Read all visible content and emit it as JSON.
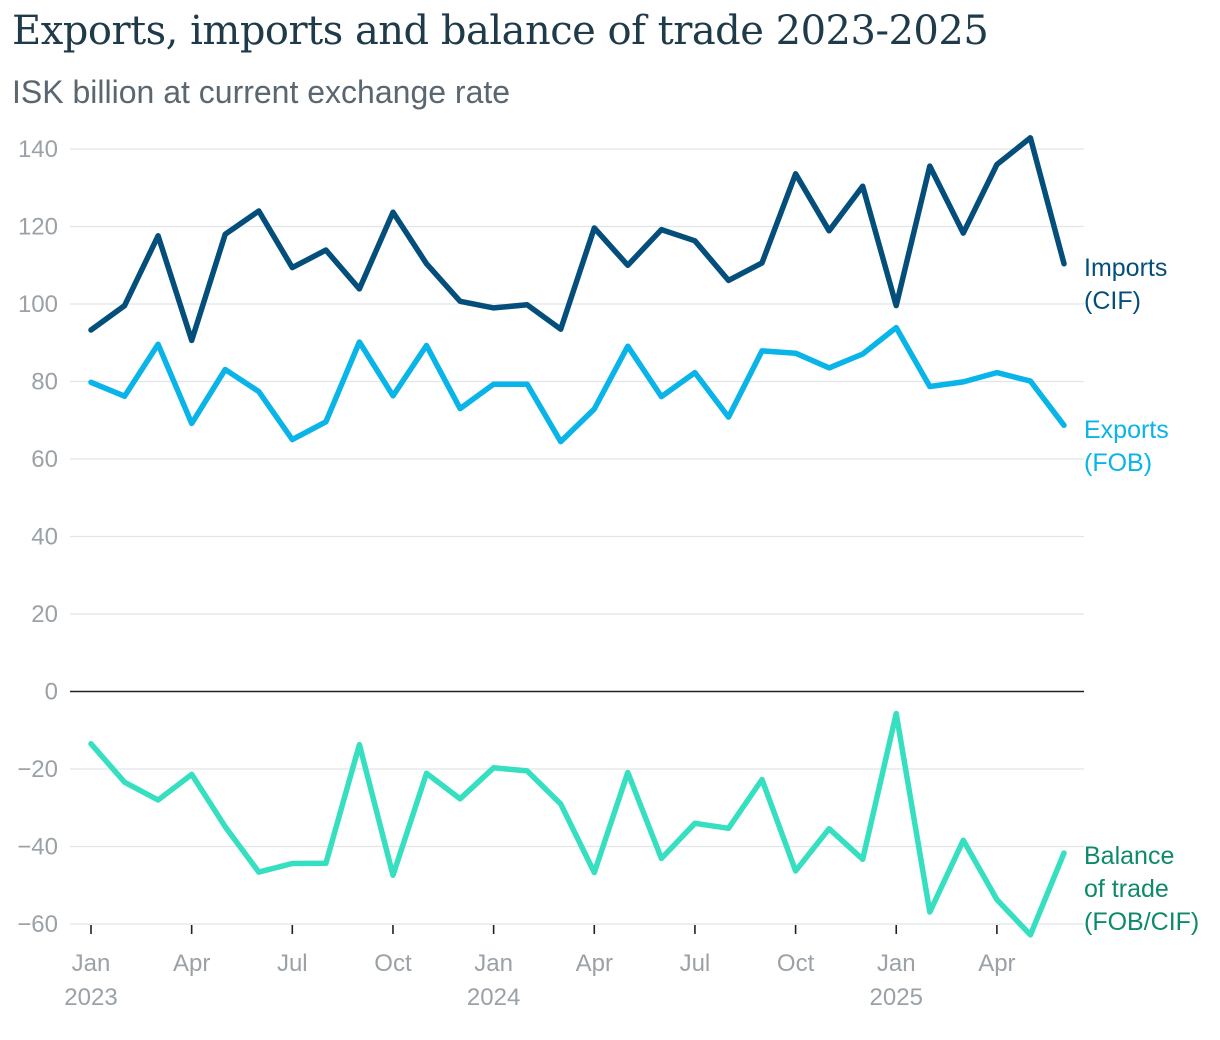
{
  "title": "Exports, imports and balance of trade 2023-2025",
  "subtitle": "ISK billion at current exchange rate",
  "chart_data": {
    "type": "line",
    "title": "Exports, imports and balance of trade 2023-2025",
    "subtitle": "ISK billion at current exchange rate",
    "ylim": [
      -60,
      140
    ],
    "yticks": [
      -60,
      -40,
      -20,
      0,
      20,
      40,
      60,
      80,
      100,
      120,
      140
    ],
    "ytick_labels": [
      "−60",
      "−40",
      "−20",
      "0",
      "20",
      "40",
      "60",
      "80",
      "100",
      "120",
      "140"
    ],
    "grid": true,
    "x": [
      "2023-01",
      "2023-02",
      "2023-03",
      "2023-04",
      "2023-05",
      "2023-06",
      "2023-07",
      "2023-08",
      "2023-09",
      "2023-10",
      "2023-11",
      "2023-12",
      "2024-01",
      "2024-02",
      "2024-03",
      "2024-04",
      "2024-05",
      "2024-06",
      "2024-07",
      "2024-08",
      "2024-09",
      "2024-10",
      "2024-11",
      "2024-12",
      "2025-01",
      "2025-02",
      "2025-03",
      "2025-04",
      "2025-05",
      "2025-06"
    ],
    "xtick_labels": [
      {
        "x": "2023-01",
        "label": "Jan",
        "year": "2023"
      },
      {
        "x": "2023-04",
        "label": "Apr",
        "year": ""
      },
      {
        "x": "2023-07",
        "label": "Jul",
        "year": ""
      },
      {
        "x": "2023-10",
        "label": "Oct",
        "year": ""
      },
      {
        "x": "2024-01",
        "label": "Jan",
        "year": "2024"
      },
      {
        "x": "2024-04",
        "label": "Apr",
        "year": ""
      },
      {
        "x": "2024-07",
        "label": "Jul",
        "year": ""
      },
      {
        "x": "2024-10",
        "label": "Oct",
        "year": ""
      },
      {
        "x": "2025-01",
        "label": "Jan",
        "year": "2025"
      },
      {
        "x": "2025-04",
        "label": "Apr",
        "year": ""
      }
    ],
    "series": [
      {
        "name": "Imports (CIF)",
        "label_lines": [
          "Imports",
          "(CIF)"
        ],
        "color": "#044e7c",
        "values": [
          93.3,
          99.6,
          117.6,
          90.6,
          118.0,
          124.0,
          109.4,
          113.9,
          103.9,
          123.7,
          110.4,
          100.7,
          99.0,
          99.8,
          93.5,
          119.6,
          110.0,
          119.2,
          116.3,
          106.1,
          110.6,
          133.6,
          118.9,
          130.4,
          99.6,
          135.6,
          118.3,
          136.0,
          142.9,
          110.4
        ]
      },
      {
        "name": "Exports (FOB)",
        "label_lines": [
          "Exports",
          "(FOB)"
        ],
        "color": "#08b4e8",
        "values": [
          79.8,
          76.2,
          89.6,
          69.2,
          83.1,
          77.4,
          65.0,
          69.6,
          90.2,
          76.3,
          89.3,
          73.0,
          79.3,
          79.3,
          64.5,
          72.9,
          89.1,
          76.1,
          82.3,
          70.8,
          87.9,
          87.3,
          83.5,
          87.1,
          93.9,
          78.7,
          79.9,
          82.3,
          80.1,
          68.7
        ]
      },
      {
        "name": "Balance of trade (FOB/CIF)",
        "label_lines": [
          "Balance",
          "of trade",
          "(FOB/CIF)"
        ],
        "color": "#35dfc0",
        "label_color": "#0d8a6c",
        "values": [
          -13.5,
          -23.4,
          -28.0,
          -21.4,
          -34.9,
          -46.6,
          -44.4,
          -44.3,
          -13.7,
          -47.4,
          -21.1,
          -27.7,
          -19.7,
          -20.5,
          -29.0,
          -46.7,
          -20.9,
          -43.1,
          -34.0,
          -35.3,
          -22.7,
          -46.3,
          -35.4,
          -43.3,
          -5.7,
          -56.9,
          -38.4,
          -53.7,
          -62.8,
          -41.7
        ]
      }
    ]
  }
}
